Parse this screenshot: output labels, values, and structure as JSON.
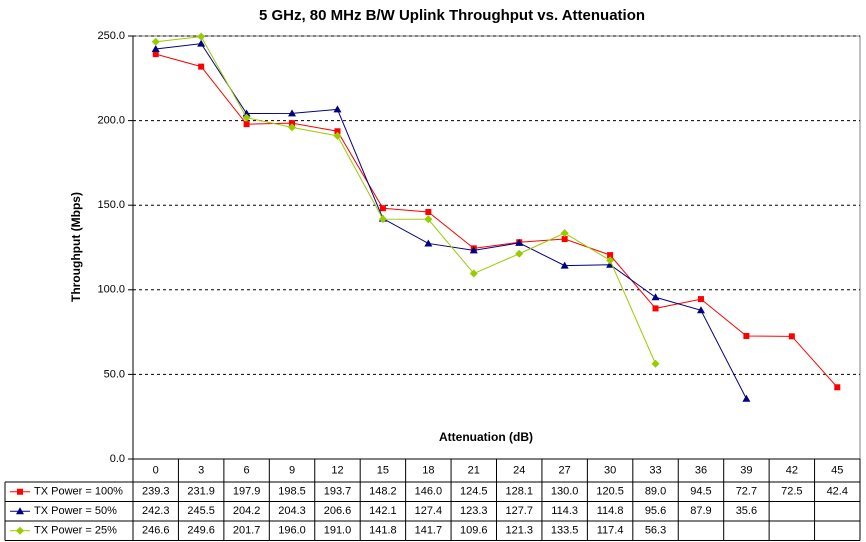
{
  "chart_data": {
    "type": "line",
    "title": "5 GHz, 80 MHz B/W Uplink Throughput vs. Attenuation",
    "x_label": "Attenuation (dB)",
    "y_label": "Throughput (Mbps)",
    "categories": [
      "0",
      "3",
      "6",
      "9",
      "12",
      "15",
      "18",
      "21",
      "24",
      "27",
      "30",
      "33",
      "36",
      "39",
      "42",
      "45"
    ],
    "ylim": [
      0,
      250
    ],
    "yticks": [
      {
        "value": 0,
        "label": "0.0"
      },
      {
        "value": 50,
        "label": "50.0"
      },
      {
        "value": 100,
        "label": "100.0"
      },
      {
        "value": 150,
        "label": "150.0"
      },
      {
        "value": 200,
        "label": "200.0"
      },
      {
        "value": 250,
        "label": "250.0"
      }
    ],
    "grid": true,
    "series": [
      {
        "name": "TX Power = 100%",
        "color": "#ff0000",
        "marker": "square",
        "values": [
          239.3,
          231.9,
          197.9,
          198.5,
          193.7,
          148.2,
          146.0,
          124.5,
          128.1,
          130.0,
          120.5,
          89.0,
          94.5,
          72.7,
          72.5,
          42.4
        ],
        "value_labels": [
          "239.3",
          "231.9",
          "197.9",
          "198.5",
          "193.7",
          "148.2",
          "146.0",
          "124.5",
          "128.1",
          "130.0",
          "120.5",
          "89.0",
          "94.5",
          "72.7",
          "72.5",
          "42.4"
        ]
      },
      {
        "name": "TX Power = 50%",
        "color": "#000080",
        "marker": "triangle",
        "values": [
          242.3,
          245.5,
          204.2,
          204.3,
          206.6,
          142.1,
          127.4,
          123.3,
          127.7,
          114.3,
          114.8,
          95.6,
          87.9,
          35.6,
          null,
          null
        ],
        "value_labels": [
          "242.3",
          "245.5",
          "204.2",
          "204.3",
          "206.6",
          "142.1",
          "127.4",
          "123.3",
          "127.7",
          "114.3",
          "114.8",
          "95.6",
          "87.9",
          "35.6",
          null,
          null
        ]
      },
      {
        "name": "TX Power = 25%",
        "color": "#99cc00",
        "marker": "diamond",
        "values": [
          246.6,
          249.6,
          201.7,
          196.0,
          191.0,
          141.8,
          141.7,
          109.6,
          121.3,
          133.5,
          117.4,
          56.3,
          null,
          null,
          null,
          null
        ],
        "value_labels": [
          "246.6",
          "249.6",
          "201.7",
          "196.0",
          "191.0",
          "141.8",
          "141.7",
          "109.6",
          "121.3",
          "133.5",
          "117.4",
          "56.3",
          null,
          null,
          null,
          null
        ]
      }
    ]
  }
}
